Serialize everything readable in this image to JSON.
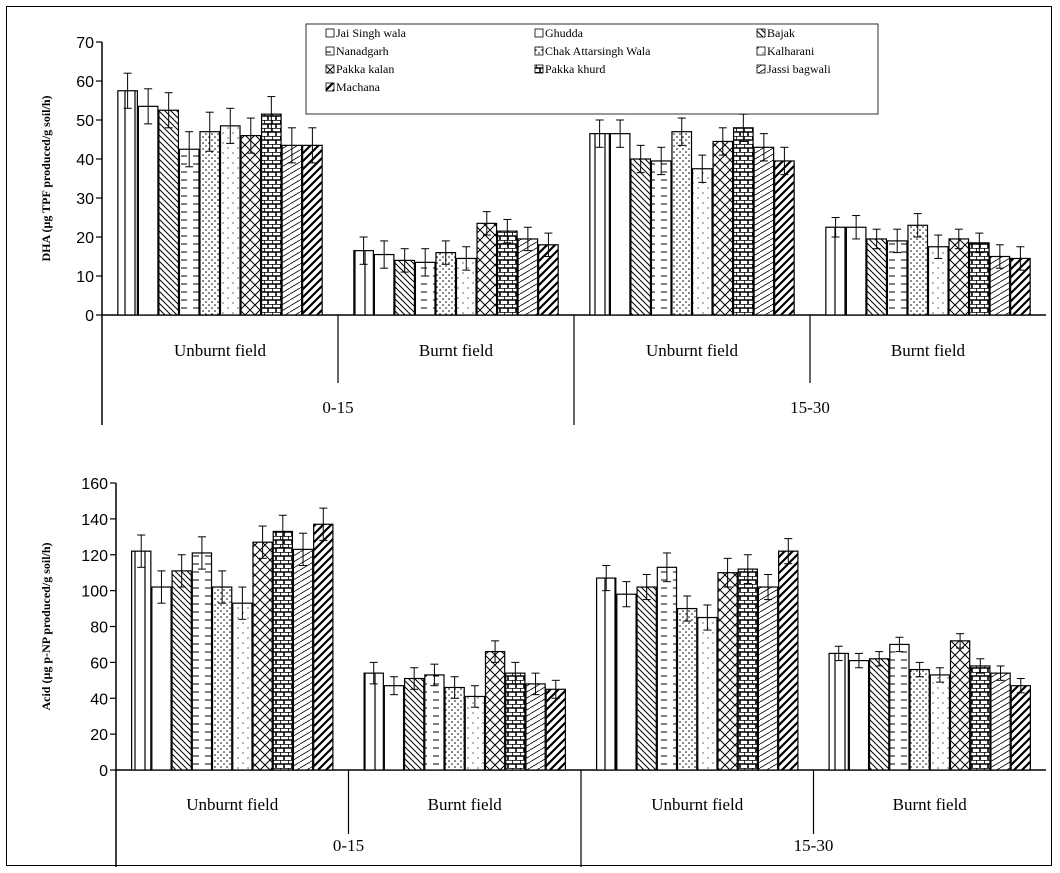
{
  "chart_data": [
    {
      "type": "bar",
      "ylabel": "DHA (µg TPF produced/g soil/h)",
      "ylim": [
        0,
        70
      ],
      "yticks": [
        0,
        10,
        20,
        30,
        40,
        50,
        60,
        70
      ],
      "depth_groups": [
        "0-15",
        "15-30"
      ],
      "field_groups": [
        "Unburnt field",
        "Burnt field",
        "Unburnt field",
        "Burnt field"
      ],
      "grid": false,
      "legend_position": "top-center",
      "series": [
        {
          "name": "Jai Singh wala",
          "values": [
            57.5,
            16.5,
            46.5,
            22.5
          ],
          "errors": [
            4.5,
            3.5,
            3.5,
            2.5
          ]
        },
        {
          "name": "Ghudda",
          "values": [
            53.5,
            15.5,
            46.5,
            22.5
          ],
          "errors": [
            4.5,
            3.5,
            3.5,
            3
          ]
        },
        {
          "name": "Bajak",
          "values": [
            52.5,
            14,
            40,
            19.5
          ],
          "errors": [
            4.5,
            3,
            3.5,
            2.5
          ]
        },
        {
          "name": "Nanadgarh",
          "values": [
            42.5,
            13.5,
            39.5,
            19
          ],
          "errors": [
            4.5,
            3.5,
            3.5,
            3
          ]
        },
        {
          "name": "Chak Attarsingh Wala",
          "values": [
            47,
            16,
            47,
            23
          ],
          "errors": [
            5,
            3,
            3.5,
            3
          ]
        },
        {
          "name": "Kalharani",
          "values": [
            48.5,
            14.5,
            37.5,
            17.5
          ],
          "errors": [
            4.5,
            3,
            3.5,
            3
          ]
        },
        {
          "name": "Pakka kalan",
          "values": [
            46,
            23.5,
            44.5,
            19.5
          ],
          "errors": [
            4.5,
            3,
            3.5,
            2.5
          ]
        },
        {
          "name": "Pakka khurd",
          "values": [
            51.5,
            21.5,
            48,
            18.5
          ],
          "errors": [
            4.5,
            3,
            3.5,
            2.5
          ]
        },
        {
          "name": "Jassi bagwali",
          "values": [
            43.5,
            19.5,
            43,
            15
          ],
          "errors": [
            4.5,
            3,
            3.5,
            3
          ]
        },
        {
          "name": "Machana",
          "values": [
            43.5,
            18,
            39.5,
            14.5
          ],
          "errors": [
            4.5,
            3,
            3.5,
            3
          ]
        }
      ]
    },
    {
      "type": "bar",
      "ylabel": "Acid  (µg p-NP produced/g soil/h)",
      "ylim": [
        0,
        160
      ],
      "yticks": [
        0,
        20,
        40,
        60,
        80,
        100,
        120,
        140,
        160
      ],
      "depth_groups": [
        "0-15",
        "15-30"
      ],
      "field_groups": [
        "Unburnt field",
        "Burnt field",
        "Unburnt field",
        "Burnt field"
      ],
      "grid": false,
      "series": [
        {
          "name": "Jai Singh wala",
          "values": [
            122,
            54,
            107,
            65
          ],
          "errors": [
            9,
            6,
            7,
            4
          ]
        },
        {
          "name": "Ghudda",
          "values": [
            102,
            47,
            98,
            61
          ],
          "errors": [
            9,
            5,
            7,
            4
          ]
        },
        {
          "name": "Bajak",
          "values": [
            111,
            51,
            102,
            62
          ],
          "errors": [
            9,
            6,
            7,
            4
          ]
        },
        {
          "name": "Nanadgarh",
          "values": [
            121,
            53,
            113,
            70
          ],
          "errors": [
            9,
            6,
            8,
            4
          ]
        },
        {
          "name": "Chak Attarsingh Wala",
          "values": [
            102,
            46,
            90,
            56
          ],
          "errors": [
            9,
            6,
            7,
            4
          ]
        },
        {
          "name": "Kalharani",
          "values": [
            93,
            41,
            85,
            53
          ],
          "errors": [
            9,
            6,
            7,
            4
          ]
        },
        {
          "name": "Pakka kalan",
          "values": [
            127,
            66,
            110,
            72
          ],
          "errors": [
            9,
            6,
            8,
            4
          ]
        },
        {
          "name": "Pakka khurd",
          "values": [
            133,
            54,
            112,
            58
          ],
          "errors": [
            9,
            6,
            8,
            4
          ]
        },
        {
          "name": "Jassi bagwali",
          "values": [
            123,
            48,
            102,
            54
          ],
          "errors": [
            9,
            6,
            7,
            4
          ]
        },
        {
          "name": "Machana",
          "values": [
            137,
            45,
            122,
            47
          ],
          "errors": [
            9,
            5,
            7,
            4
          ]
        }
      ]
    }
  ]
}
